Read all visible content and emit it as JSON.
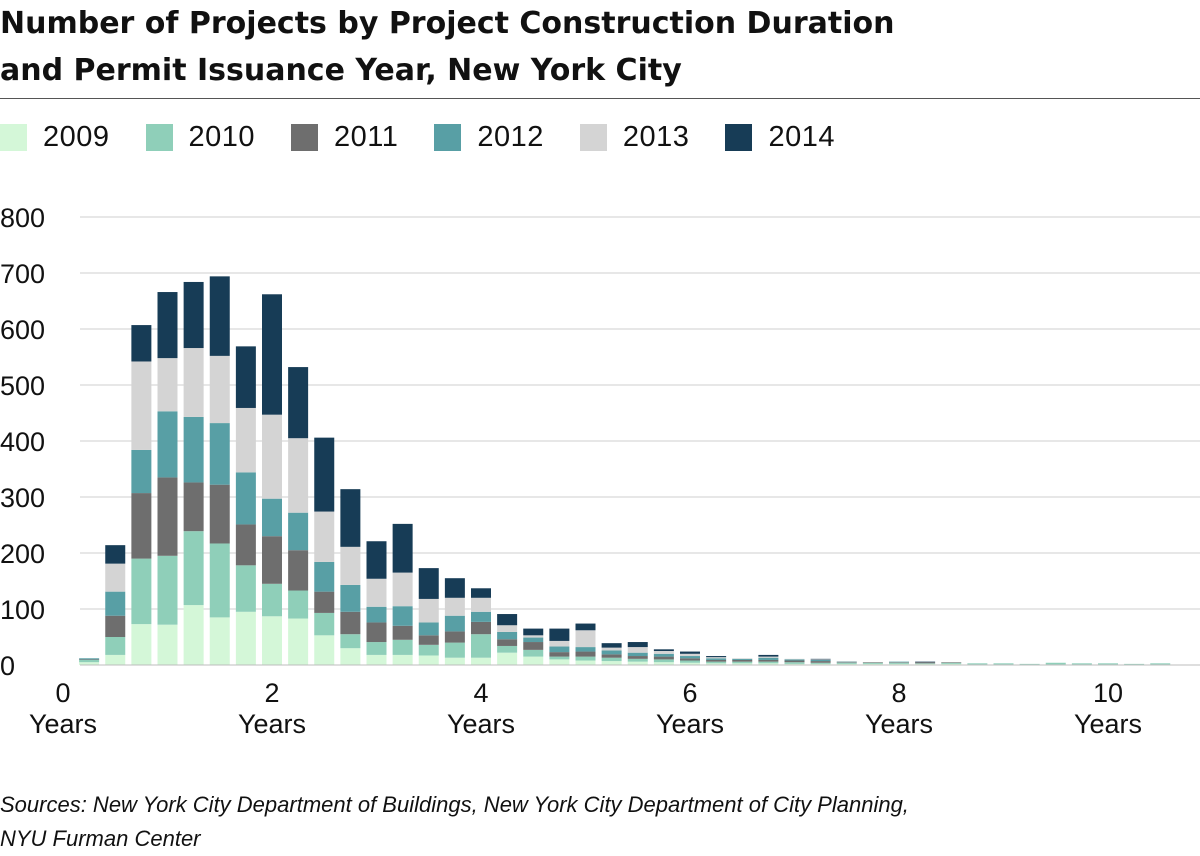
{
  "title": {
    "line1": "Number of Projects by Project Construction Duration",
    "line2": "and Permit Issuance Year, New York City"
  },
  "legend": [
    {
      "label": "2009",
      "color": "#d4f7d8"
    },
    {
      "label": "2010",
      "color": "#8fcfb9"
    },
    {
      "label": "2011",
      "color": "#6e6e6e"
    },
    {
      "label": "2012",
      "color": "#589fa5"
    },
    {
      "label": "2013",
      "color": "#d4d4d4"
    },
    {
      "label": "2014",
      "color": "#173c56"
    }
  ],
  "source": {
    "line1": "Sources: New York City Department of Buildings, New York City Department of City Planning,",
    "line2": "NYU Furman Center"
  },
  "chart_data": {
    "type": "bar",
    "stacked": true,
    "x_unit": "years",
    "x": [
      0.25,
      0.5,
      0.75,
      1.0,
      1.25,
      1.5,
      1.75,
      2.0,
      2.25,
      2.5,
      2.75,
      3.0,
      3.25,
      3.5,
      3.75,
      4.0,
      4.25,
      4.5,
      4.75,
      5.0,
      5.25,
      5.5,
      5.75,
      6.0,
      6.25,
      6.5,
      6.75,
      7.0,
      7.25,
      7.5,
      7.75,
      8.0,
      8.25,
      8.5,
      8.75,
      9.0,
      9.25,
      9.5,
      9.75,
      10.0,
      10.25,
      10.5
    ],
    "series": [
      {
        "name": "2009",
        "color": "#d4f7d8",
        "values": [
          5,
          18,
          73,
          72,
          107,
          85,
          95,
          87,
          83,
          53,
          30,
          18,
          18,
          17,
          13,
          13,
          22,
          15,
          10,
          8,
          7,
          6,
          5,
          4,
          3,
          3,
          3,
          2,
          2,
          2,
          2,
          2,
          2,
          2,
          1,
          1,
          1,
          1,
          1,
          1,
          1,
          1
        ]
      },
      {
        "name": "2010",
        "color": "#8fcfb9",
        "values": [
          4,
          32,
          117,
          123,
          132,
          132,
          83,
          58,
          50,
          40,
          25,
          23,
          27,
          19,
          27,
          42,
          12,
          12,
          5,
          7,
          6,
          5,
          5,
          4,
          3,
          3,
          3,
          3,
          2,
          2,
          2,
          2,
          1,
          2,
          2,
          2,
          1,
          3,
          2,
          2,
          1,
          2
        ]
      },
      {
        "name": "2011",
        "color": "#6e6e6e",
        "values": [
          1,
          38,
          117,
          140,
          87,
          105,
          73,
          85,
          72,
          38,
          40,
          35,
          25,
          17,
          20,
          22,
          12,
          14,
          8,
          9,
          6,
          5,
          5,
          4,
          3,
          3,
          3,
          3,
          3,
          1,
          1,
          1,
          2,
          1,
          0,
          0,
          0,
          0,
          0,
          0,
          0,
          0
        ]
      },
      {
        "name": "2012",
        "color": "#589fa5",
        "values": [
          2,
          43,
          77,
          118,
          117,
          110,
          93,
          67,
          67,
          53,
          48,
          28,
          35,
          23,
          28,
          18,
          13,
          8,
          10,
          8,
          7,
          6,
          5,
          4,
          3,
          2,
          4,
          2,
          2,
          1,
          0,
          1,
          0,
          0,
          0,
          0,
          0,
          0,
          0,
          0,
          0,
          0
        ]
      },
      {
        "name": "2013",
        "color": "#d4d4d4",
        "values": [
          0,
          50,
          158,
          95,
          123,
          120,
          115,
          150,
          133,
          90,
          68,
          50,
          60,
          42,
          32,
          25,
          12,
          4,
          10,
          30,
          5,
          10,
          5,
          4,
          2,
          1,
          2,
          1,
          1,
          1,
          0,
          0,
          0,
          0,
          0,
          0,
          0,
          0,
          0,
          0,
          0,
          0
        ]
      },
      {
        "name": "2014",
        "color": "#173c56",
        "values": [
          0,
          33,
          65,
          118,
          118,
          142,
          110,
          215,
          127,
          132,
          103,
          67,
          87,
          55,
          35,
          17,
          20,
          12,
          22,
          12,
          8,
          9,
          3,
          4,
          2,
          0,
          3,
          0,
          1,
          0,
          0,
          0,
          1,
          0,
          0,
          0,
          0,
          0,
          0,
          0,
          0,
          0
        ]
      }
    ],
    "ylim": [
      0,
      800
    ],
    "yticks": [
      "0",
      "100",
      "200",
      "300",
      "400",
      "500",
      "600",
      "700",
      "800"
    ],
    "xticks": [
      {
        "value": 0,
        "label": "0",
        "unit": "Years"
      },
      {
        "value": 2,
        "label": "2",
        "unit": "Years"
      },
      {
        "value": 4,
        "label": "4",
        "unit": "Years"
      },
      {
        "value": 6,
        "label": "6",
        "unit": "Years"
      },
      {
        "value": 8,
        "label": "8",
        "unit": "Years"
      },
      {
        "value": 10,
        "label": "10",
        "unit": "Years"
      }
    ],
    "xlim": [
      0,
      10.85
    ],
    "grid": true,
    "legend_position": "top-left"
  }
}
